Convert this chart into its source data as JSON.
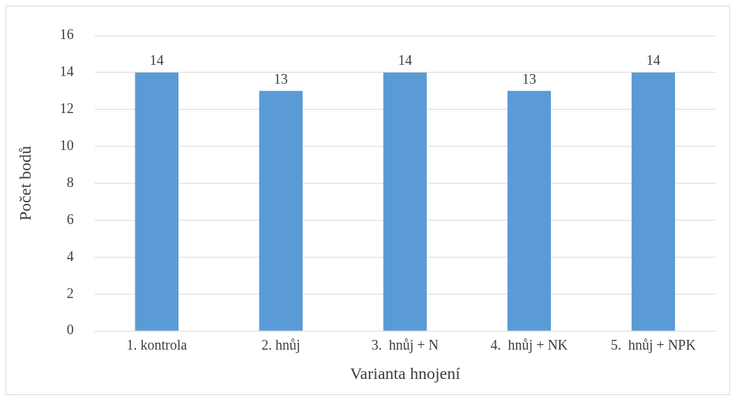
{
  "chart_data": {
    "type": "bar",
    "xlabel": "Varianta hnojení",
    "ylabel": "Počet bodů",
    "categories": [
      "1. kontrola",
      "2. hnůj",
      "3.  hnůj + N",
      "4.  hnůj + NK",
      "5.  hnůj + NPK"
    ],
    "values": [
      14,
      13,
      14,
      13,
      14
    ],
    "color": "#5b9bd5",
    "ylim": [
      0,
      16
    ],
    "yticks": [
      0,
      2,
      4,
      6,
      8,
      10,
      12,
      14,
      16
    ],
    "grid": "y",
    "data_labels": true
  }
}
